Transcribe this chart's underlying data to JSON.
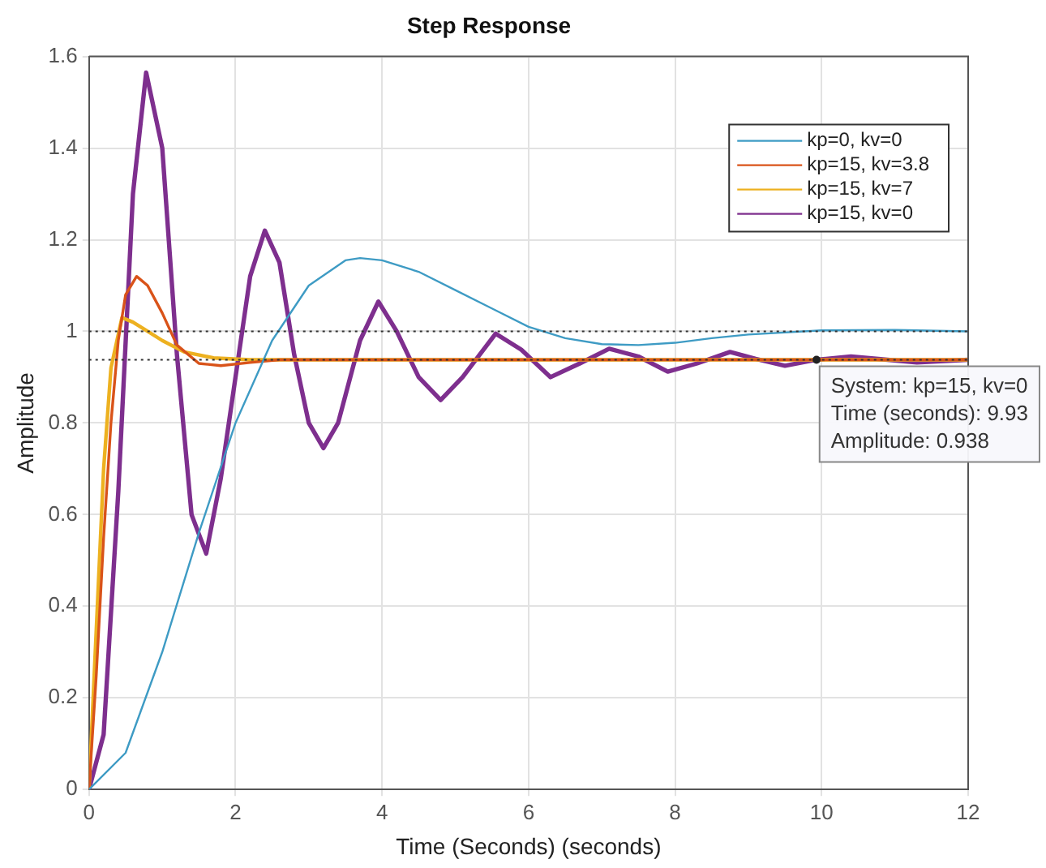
{
  "chart_data": {
    "type": "line",
    "title": "Step Response",
    "xlabel": "Time (Seconds) (seconds)",
    "ylabel": "Amplitude",
    "xlim": [
      0,
      12
    ],
    "xticks": [
      0,
      2,
      4,
      6,
      8,
      10,
      12
    ],
    "ylim": [
      0,
      1.6
    ],
    "yticks": [
      0,
      0.2,
      0.4,
      0.6,
      0.8,
      1,
      1.2,
      1.4,
      1.6
    ],
    "grid": true,
    "legend": "top right",
    "marker": "none",
    "line_style": "solid",
    "series": [
      {
        "name": "kp=0, kv=0",
        "color": "#3e9bc4",
        "x": [
          0,
          0.5,
          1,
          1.5,
          2,
          2.5,
          3,
          3.5,
          3.7,
          4,
          4.5,
          5,
          5.5,
          6,
          6.5,
          7,
          7.5,
          8,
          8.5,
          9,
          10,
          11,
          12
        ],
        "values": [
          0,
          0.08,
          0.3,
          0.56,
          0.8,
          0.98,
          1.1,
          1.155,
          1.16,
          1.155,
          1.13,
          1.09,
          1.05,
          1.01,
          0.985,
          0.972,
          0.97,
          0.975,
          0.985,
          0.993,
          1.002,
          1.003,
          1.0
        ]
      },
      {
        "name": "kp=15, kv=3.8",
        "color": "#d95319",
        "x": [
          0,
          0.1,
          0.2,
          0.3,
          0.4,
          0.5,
          0.65,
          0.8,
          1,
          1.2,
          1.5,
          1.8,
          2.2,
          2.6,
          12
        ],
        "values": [
          0,
          0.25,
          0.55,
          0.8,
          0.98,
          1.08,
          1.12,
          1.1,
          1.04,
          0.97,
          0.93,
          0.925,
          0.932,
          0.938,
          0.938
        ]
      },
      {
        "name": "kp=15, kv=7",
        "color": "#edb120",
        "x": [
          0,
          0.1,
          0.2,
          0.3,
          0.45,
          0.6,
          0.8,
          1,
          1.3,
          1.7,
          2.2,
          12
        ],
        "values": [
          0,
          0.35,
          0.7,
          0.92,
          1.03,
          1.02,
          1.0,
          0.98,
          0.955,
          0.942,
          0.938,
          0.938
        ]
      },
      {
        "name": "kp=15, kv=0",
        "color": "#7e2f8e",
        "x": [
          0,
          0.2,
          0.4,
          0.6,
          0.78,
          1,
          1.2,
          1.4,
          1.6,
          1.8,
          2,
          2.2,
          2.4,
          2.6,
          2.8,
          3,
          3.2,
          3.4,
          3.7,
          3.95,
          4.2,
          4.5,
          4.8,
          5.1,
          5.55,
          5.9,
          6.3,
          6.7,
          7.1,
          7.5,
          7.9,
          8.3,
          8.75,
          9.1,
          9.5,
          9.93,
          10.4,
          10.9,
          11.3,
          12
        ],
        "values": [
          0,
          0.12,
          0.65,
          1.3,
          1.565,
          1.4,
          0.95,
          0.6,
          0.515,
          0.68,
          0.9,
          1.12,
          1.22,
          1.15,
          0.95,
          0.8,
          0.745,
          0.8,
          0.98,
          1.065,
          1.0,
          0.9,
          0.85,
          0.9,
          0.995,
          0.96,
          0.9,
          0.93,
          0.962,
          0.945,
          0.912,
          0.93,
          0.955,
          0.94,
          0.925,
          0.938,
          0.945,
          0.938,
          0.932,
          0.938
        ]
      }
    ],
    "ref_lines": [
      {
        "axis": "y",
        "value": 1,
        "color": "#333333",
        "line_style": "dotted"
      },
      {
        "axis": "y",
        "value": 0.938,
        "color": "#333333",
        "line_style": "dotted"
      }
    ],
    "annotations": [
      {
        "text": "System: kp=15, kv=0\nTime (seconds): 9.93\nAmplitude: 0.938",
        "x": 9.93,
        "y": 0.938
      }
    ]
  }
}
